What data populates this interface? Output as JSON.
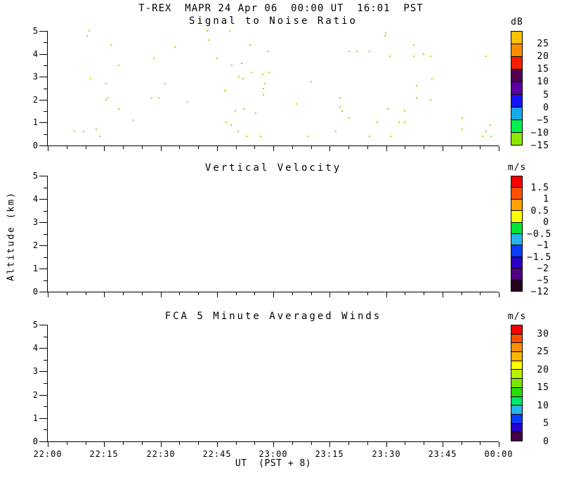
{
  "header": {
    "title": "T-REX  MAPR 24 Apr 06  00:00 UT  16:01  PST"
  },
  "axes": {
    "y_label": "Altitude (km)",
    "x_label": "UT  (PST + 8)",
    "y_tick_labels": [
      "5",
      "4",
      "3",
      "2",
      "1",
      "0"
    ],
    "x_tick_labels": [
      "22:00",
      "22:15",
      "22:30",
      "22:45",
      "23:00",
      "23:15",
      "23:30",
      "23:45",
      "00:00"
    ]
  },
  "panels": [
    {
      "title": "Signal to Noise Ratio",
      "colorbar": {
        "unit": "dB",
        "colors": [
          "#ffc000",
          "#ff8c00",
          "#f51e00",
          "#500050",
          "#5a00a0",
          "#1414ff",
          "#14aaeb",
          "#00f050",
          "#8ce800"
        ],
        "labels": [
          "25",
          "20",
          "15",
          "10",
          "5",
          "0",
          "−5",
          "−10",
          "−15"
        ]
      }
    },
    {
      "title": "Vertical Velocity",
      "colorbar": {
        "unit": "m/s",
        "colors": [
          "#fa0000",
          "#ff5000",
          "#ffa000",
          "#ffff00",
          "#00e632",
          "#28b4eb",
          "#0a3cff",
          "#2800c8",
          "#500082",
          "#28001e"
        ],
        "labels": [
          "1.5",
          "1",
          "0.5",
          "0",
          "−0.5",
          "−1",
          "−1.5",
          "−2",
          "−5",
          "−12"
        ]
      }
    },
    {
      "title": "FCA 5 Minute Averaged Winds",
      "colorbar": {
        "unit": "m/s",
        "colors": [
          "#fa0000",
          "#ff5000",
          "#ff8c00",
          "#ffb400",
          "#ffff00",
          "#b4f000",
          "#78e600",
          "#28dc00",
          "#00e66e",
          "#28b4eb",
          "#0a3cff",
          "#2800c8",
          "#46004b"
        ],
        "labels": [
          "30",
          "",
          "25",
          "",
          "20",
          "",
          "15",
          "",
          "10",
          "",
          "5",
          "",
          "0"
        ]
      }
    }
  ],
  "chart_data": [
    {
      "type": "scatter",
      "title": "Signal to Noise Ratio",
      "xlabel": "UT  (PST + 8)",
      "ylabel": "Altitude (km)",
      "x_tick_labels": [
        "22:00",
        "22:15",
        "22:30",
        "22:45",
        "23:00",
        "23:15",
        "23:30",
        "23:45",
        "00:00"
      ],
      "x_minutes_range": [
        0,
        120
      ],
      "ylim": [
        0,
        5
      ],
      "value_unit": "dB",
      "colorbar_labels": [
        "25",
        "20",
        "15",
        "10",
        "5",
        "0",
        "−5",
        "−10",
        "−15"
      ],
      "point_value_dB": "-15 to -10",
      "point_color": "#8ce800",
      "points_t_alt": [
        [
          11.0,
          5.0
        ],
        [
          10.5,
          4.8
        ],
        [
          16.8,
          4.4
        ],
        [
          33.8,
          4.3
        ],
        [
          28.2,
          3.8
        ],
        [
          18.9,
          3.5
        ],
        [
          11.4,
          2.9
        ],
        [
          15.5,
          2.7
        ],
        [
          31.2,
          2.7
        ],
        [
          15.9,
          2.1
        ],
        [
          15.5,
          2.0
        ],
        [
          27.7,
          2.1
        ],
        [
          29.5,
          2.1
        ],
        [
          37.2,
          1.9
        ],
        [
          18.9,
          1.6
        ],
        [
          22.8,
          1.1
        ],
        [
          7.1,
          0.6
        ],
        [
          9.5,
          0.6
        ],
        [
          12.9,
          0.7
        ],
        [
          13.8,
          0.4
        ],
        [
          42.4,
          5.0
        ],
        [
          48.4,
          5.0
        ],
        [
          42.8,
          4.6
        ],
        [
          53.8,
          4.4
        ],
        [
          58.5,
          4.1
        ],
        [
          80.2,
          4.1
        ],
        [
          45.0,
          3.8
        ],
        [
          49.0,
          3.5
        ],
        [
          51.6,
          3.6
        ],
        [
          54.2,
          3.2
        ],
        [
          57.2,
          3.1
        ],
        [
          58.9,
          3.2
        ],
        [
          50.8,
          3.0
        ],
        [
          52.0,
          2.9
        ],
        [
          57.8,
          2.7
        ],
        [
          70.1,
          2.8
        ],
        [
          57.4,
          2.5
        ],
        [
          47.1,
          2.4
        ],
        [
          57.4,
          2.2
        ],
        [
          77.8,
          2.1
        ],
        [
          66.2,
          1.8
        ],
        [
          77.8,
          1.7
        ],
        [
          78.3,
          1.5
        ],
        [
          49.9,
          1.5
        ],
        [
          52.1,
          1.6
        ],
        [
          55.3,
          1.4
        ],
        [
          80.2,
          1.2
        ],
        [
          47.5,
          1.0
        ],
        [
          48.8,
          0.9
        ],
        [
          50.7,
          0.6
        ],
        [
          52.9,
          0.4
        ],
        [
          56.6,
          0.4
        ],
        [
          69.2,
          0.4
        ],
        [
          76.6,
          0.6
        ],
        [
          89.9,
          4.9
        ],
        [
          89.7,
          4.8
        ],
        [
          97.4,
          4.4
        ],
        [
          82.2,
          4.1
        ],
        [
          85.6,
          4.1
        ],
        [
          91.0,
          3.9
        ],
        [
          97.4,
          3.9
        ],
        [
          100.0,
          4.0
        ],
        [
          101.9,
          3.9
        ],
        [
          116.6,
          3.9
        ],
        [
          102.2,
          2.9
        ],
        [
          98.1,
          2.6
        ],
        [
          98.1,
          2.1
        ],
        [
          101.9,
          2.0
        ],
        [
          90.5,
          1.6
        ],
        [
          95.0,
          1.5
        ],
        [
          87.7,
          1.0
        ],
        [
          93.5,
          1.0
        ],
        [
          95.0,
          1.0
        ],
        [
          110.3,
          1.2
        ],
        [
          117.8,
          0.9
        ],
        [
          110.3,
          0.7
        ],
        [
          116.6,
          0.6
        ],
        [
          85.6,
          0.4
        ],
        [
          91.2,
          0.4
        ],
        [
          115.7,
          0.4
        ],
        [
          117.9,
          0.4
        ]
      ]
    },
    {
      "type": "heatmap",
      "title": "Vertical Velocity",
      "xlabel": "UT  (PST + 8)",
      "ylabel": "Altitude (km)",
      "x_minutes_range": [
        0,
        120
      ],
      "ylim": [
        0,
        5
      ],
      "value_unit": "m/s",
      "colorbar_labels": [
        "1.5",
        "1",
        "0.5",
        "0",
        "−0.5",
        "−1",
        "−1.5",
        "−2",
        "−5",
        "−12"
      ],
      "values": []
    },
    {
      "type": "heatmap",
      "title": "FCA 5 Minute Averaged Winds",
      "xlabel": "UT  (PST + 8)",
      "ylabel": "Altitude (km)",
      "x_minutes_range": [
        0,
        120
      ],
      "ylim": [
        0,
        5
      ],
      "value_unit": "m/s",
      "colorbar_labels": [
        "30",
        "25",
        "20",
        "15",
        "10",
        "5",
        "0"
      ],
      "values": []
    }
  ]
}
